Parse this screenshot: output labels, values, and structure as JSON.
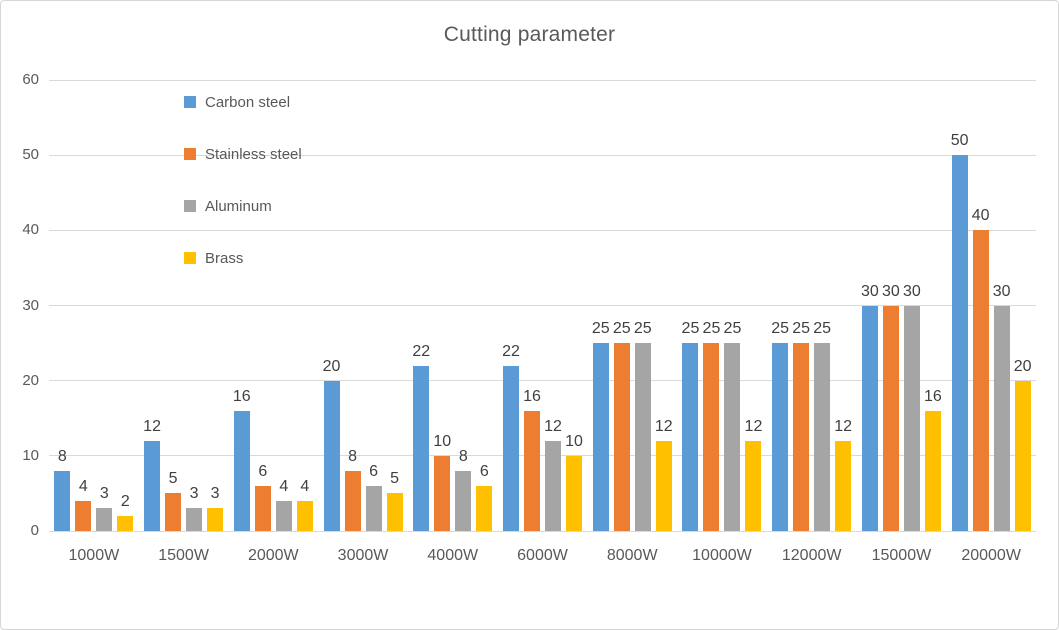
{
  "chart": {
    "title": "Cutting parameter"
  },
  "chart_data": {
    "type": "bar",
    "title": "Cutting parameter",
    "xlabel": "",
    "ylabel": "",
    "categories": [
      "1000W",
      "1500W",
      "2000W",
      "3000W",
      "4000W",
      "6000W",
      "8000W",
      "10000W",
      "12000W",
      "15000W",
      "20000W"
    ],
    "series": [
      {
        "name": "Carbon steel",
        "color": "#5B9BD5",
        "values": [
          8,
          12,
          16,
          20,
          22,
          22,
          25,
          25,
          25,
          30,
          50
        ]
      },
      {
        "name": "Stainless steel",
        "color": "#ED7D31",
        "values": [
          4,
          5,
          6,
          8,
          10,
          16,
          25,
          25,
          25,
          30,
          40
        ]
      },
      {
        "name": "Aluminum",
        "color": "#A5A5A5",
        "values": [
          3,
          3,
          4,
          6,
          8,
          12,
          25,
          25,
          25,
          30,
          30
        ]
      },
      {
        "name": "Brass",
        "color": "#FFC000",
        "values": [
          2,
          3,
          4,
          5,
          6,
          10,
          12,
          12,
          12,
          16,
          20
        ]
      }
    ],
    "ylim": [
      0,
      60
    ],
    "yticks": [
      0,
      10,
      20,
      30,
      40,
      50,
      60
    ],
    "grid": true,
    "data_labels": true,
    "legend_position": "top-left-vertical",
    "text_color": "#595959",
    "data_label_color": "#404040",
    "gridline_color": "#D9D9D9"
  }
}
